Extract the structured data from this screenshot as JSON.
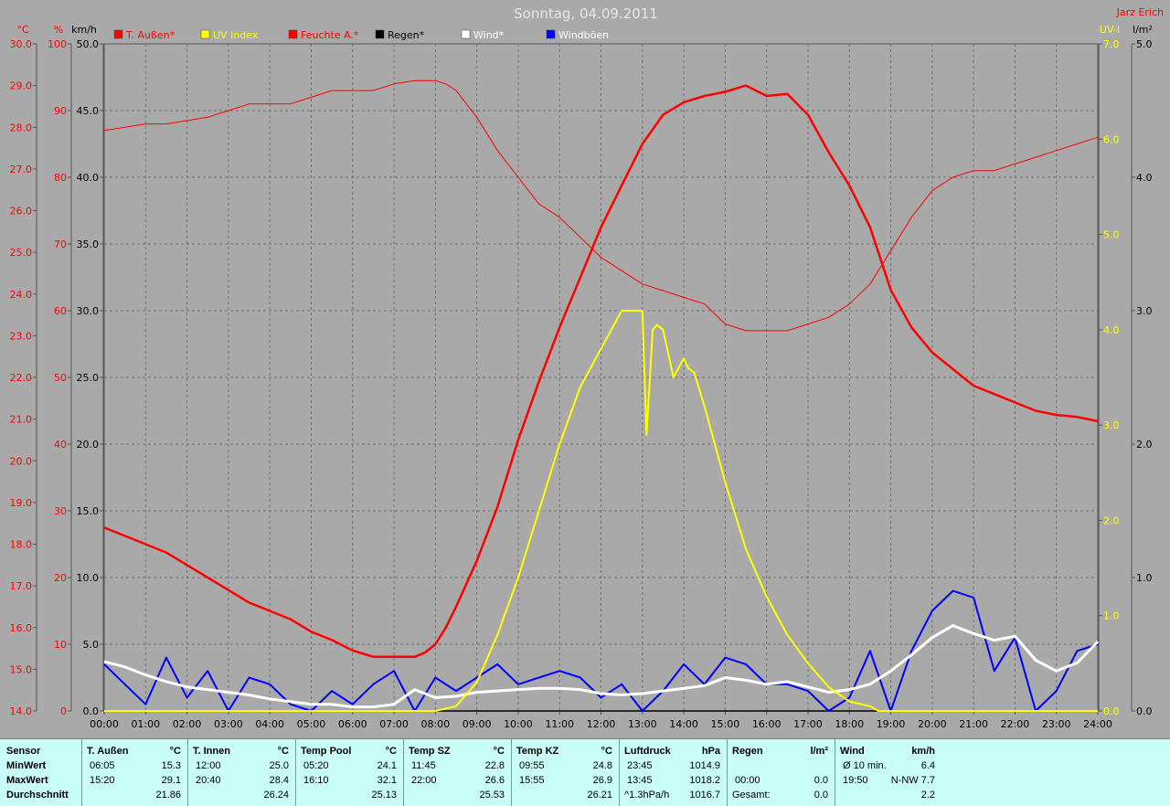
{
  "header": {
    "title": "Sonntag, 04.09.2011",
    "author": "Jarz Erich"
  },
  "axes": {
    "left_units": [
      "°C",
      "%",
      "km/h"
    ],
    "right_units": [
      "UV-I",
      "l/m²"
    ],
    "temp_ticks": [
      "30.0",
      "29.0",
      "28.0",
      "27.0",
      "26.0",
      "25.0",
      "24.0",
      "23.0",
      "22.0",
      "21.0",
      "20.0",
      "19.0",
      "18.0",
      "17.0",
      "16.0",
      "15.0",
      "14.0"
    ],
    "humidity_ticks": [
      "100",
      "90",
      "80",
      "70",
      "60",
      "50",
      "40",
      "30",
      "20",
      "10",
      "0"
    ],
    "wind_ticks": [
      "50.0",
      "45.0",
      "40.0",
      "35.0",
      "30.0",
      "25.0",
      "20.0",
      "15.0",
      "10.0",
      "5.0",
      "0.0"
    ],
    "uv_ticks": [
      "7.0",
      "6.0",
      "5.0",
      "4.0",
      "3.0",
      "2.0",
      "1.0",
      "0.0"
    ],
    "rain_ticks": [
      "5.0",
      "4.0",
      "3.0",
      "2.0",
      "1.0",
      "0.0"
    ],
    "time_ticks": [
      "00:00",
      "01:00",
      "02:00",
      "03:00",
      "04:00",
      "05:00",
      "06:00",
      "07:00",
      "08:00",
      "09:00",
      "10:00",
      "11:00",
      "12:00",
      "13:00",
      "14:00",
      "15:00",
      "16:00",
      "17:00",
      "18:00",
      "19:00",
      "20:00",
      "21:00",
      "22:00",
      "23:00",
      "24:00"
    ]
  },
  "legend": [
    {
      "label": "T. Außen*",
      "color": "#ff0000",
      "text_color": "#ff0000"
    },
    {
      "label": "UV Index",
      "color": "#ffff00",
      "text_color": "#ffff00"
    },
    {
      "label": "Feuchte A.*",
      "color": "#ff0000",
      "text_color": "#ff0000"
    },
    {
      "label": "Regen*",
      "color": "#000000",
      "text_color": "#000000"
    },
    {
      "label": "Wind*",
      "color": "#ffffff",
      "text_color": "#ffffff"
    },
    {
      "label": "Windböen",
      "color": "#0000ff",
      "text_color": "#ffffff"
    }
  ],
  "colors": {
    "background": "#a9a9a9",
    "grid": "#808080",
    "temp": "#ff0000",
    "uv": "#ffff00",
    "wind": "#ffffff",
    "gust": "#0000ff",
    "stats_bg": "#c8fdf8"
  },
  "chart_data": {
    "type": "line",
    "x_unit": "hours",
    "xlim": [
      0,
      24
    ],
    "grid": true,
    "series": [
      {
        "name": "T. Außen*",
        "unit": "°C",
        "ylim": [
          14,
          30
        ],
        "x": [
          0,
          0.5,
          1,
          1.5,
          2,
          2.5,
          3,
          3.5,
          4,
          4.5,
          5,
          5.5,
          6,
          6.5,
          7,
          7.5,
          7.75,
          8,
          8.25,
          8.5,
          9,
          9.5,
          10,
          10.5,
          11,
          11.5,
          12,
          12.5,
          13,
          13.5,
          14,
          14.5,
          15,
          15.5,
          16,
          16.5,
          17,
          17.5,
          18,
          18.5,
          19,
          19.5,
          20,
          20.5,
          21,
          21.5,
          22,
          22.5,
          23,
          23.5,
          24
        ],
        "values": [
          18.4,
          18.2,
          18.0,
          17.8,
          17.5,
          17.2,
          16.9,
          16.6,
          16.4,
          16.2,
          15.9,
          15.7,
          15.45,
          15.3,
          15.3,
          15.3,
          15.4,
          15.6,
          16.0,
          16.5,
          17.6,
          18.9,
          20.5,
          21.9,
          23.2,
          24.4,
          25.6,
          26.6,
          27.6,
          28.3,
          28.6,
          28.75,
          28.85,
          29.0,
          28.75,
          28.8,
          28.3,
          27.4,
          26.6,
          25.6,
          24.1,
          23.2,
          22.6,
          22.2,
          21.8,
          21.6,
          21.4,
          21.2,
          21.1,
          21.05,
          20.95
        ]
      },
      {
        "name": "Feuchte A.*",
        "unit": "%",
        "ylim": [
          0,
          100
        ],
        "x": [
          0,
          0.5,
          1,
          1.5,
          2,
          2.5,
          3,
          3.5,
          4,
          4.5,
          5,
          5.5,
          6,
          6.5,
          7,
          7.5,
          8,
          8.25,
          8.5,
          9,
          9.5,
          10,
          10.5,
          11,
          11.5,
          12,
          12.5,
          13,
          13.5,
          14,
          14.5,
          15,
          15.5,
          16,
          16.5,
          17,
          17.5,
          18,
          18.5,
          19,
          19.5,
          20,
          20.5,
          21,
          21.5,
          22,
          22.5,
          23,
          23.5,
          24
        ],
        "values": [
          87,
          87.5,
          88,
          88,
          88.5,
          89,
          90,
          91,
          91,
          91,
          92,
          93,
          93,
          93,
          94,
          94.5,
          94.5,
          94,
          93,
          89,
          84,
          80,
          76,
          74,
          71,
          68,
          66,
          64,
          63,
          62,
          61,
          58,
          57,
          57,
          57,
          58,
          59,
          61,
          64,
          69,
          74,
          78,
          80,
          81,
          81,
          82,
          83,
          84,
          85,
          86
        ]
      },
      {
        "name": "UV Index",
        "unit": "UV-I",
        "ylim": [
          0,
          7
        ],
        "x": [
          0,
          8,
          8.5,
          9,
          9.5,
          10,
          10.5,
          11,
          11.5,
          12,
          12.5,
          12.75,
          13,
          13.1,
          13.25,
          13.35,
          13.5,
          13.75,
          14,
          14.1,
          14.25,
          14.5,
          15,
          15.5,
          16,
          16.5,
          17,
          17.5,
          18,
          18.5,
          18.7,
          19,
          24
        ],
        "values": [
          0,
          0,
          0.05,
          0.3,
          0.8,
          1.4,
          2.1,
          2.8,
          3.4,
          3.8,
          4.2,
          4.2,
          4.2,
          2.9,
          4.0,
          4.05,
          4.0,
          3.5,
          3.7,
          3.6,
          3.55,
          3.2,
          2.4,
          1.7,
          1.2,
          0.8,
          0.5,
          0.25,
          0.1,
          0.05,
          0,
          0,
          0
        ]
      },
      {
        "name": "Wind*",
        "unit": "km/h",
        "ylim": [
          0,
          50
        ],
        "x": [
          0,
          0.5,
          1,
          1.5,
          2,
          2.5,
          3,
          3.5,
          4,
          4.5,
          5,
          5.5,
          6,
          6.5,
          7,
          7.5,
          8,
          8.5,
          9,
          9.5,
          10,
          10.5,
          11,
          11.5,
          12,
          12.5,
          13,
          13.5,
          14,
          14.5,
          15,
          15.5,
          16,
          16.5,
          17,
          17.5,
          18,
          18.5,
          19,
          19.5,
          20,
          20.5,
          21,
          21.5,
          22,
          22.5,
          23,
          23.5,
          24
        ],
        "values": [
          3.7,
          3.3,
          2.7,
          2.2,
          1.8,
          1.6,
          1.4,
          1.2,
          0.9,
          0.7,
          0.5,
          0.5,
          0.3,
          0.3,
          0.5,
          1.6,
          1.0,
          1.1,
          1.4,
          1.5,
          1.6,
          1.7,
          1.7,
          1.6,
          1.3,
          1.2,
          1.3,
          1.5,
          1.7,
          1.9,
          2.5,
          2.3,
          2.0,
          2.2,
          1.8,
          1.4,
          1.6,
          2.0,
          3.0,
          4.2,
          5.5,
          6.4,
          5.8,
          5.3,
          5.6,
          3.8,
          3.0,
          3.6,
          5.2
        ]
      },
      {
        "name": "Windböen",
        "unit": "km/h",
        "ylim": [
          0,
          50
        ],
        "x": [
          0,
          0.5,
          1,
          1.5,
          2,
          2.5,
          3,
          3.5,
          4,
          4.5,
          5,
          5.5,
          6,
          6.5,
          7,
          7.5,
          8,
          8.5,
          9,
          9.5,
          10,
          10.5,
          11,
          11.5,
          12,
          12.5,
          13,
          13.5,
          14,
          14.5,
          15,
          15.5,
          16,
          16.5,
          17,
          17.5,
          18,
          18.5,
          19,
          19.5,
          20,
          20.5,
          21,
          21.5,
          22,
          22.5,
          23,
          23.5,
          24
        ],
        "values": [
          3.5,
          2.0,
          0.5,
          4.0,
          1.0,
          3.0,
          0.0,
          2.5,
          2.0,
          0.5,
          0.0,
          1.5,
          0.5,
          2.0,
          3.0,
          0.0,
          2.5,
          1.5,
          2.5,
          3.5,
          2.0,
          2.5,
          3.0,
          2.5,
          1.0,
          2.0,
          0.0,
          1.5,
          3.5,
          2.0,
          4.0,
          3.5,
          2.0,
          2.0,
          1.5,
          0.0,
          1.0,
          4.5,
          0.0,
          4.5,
          7.5,
          9.0,
          8.5,
          3.0,
          5.5,
          0.0,
          1.5,
          4.5,
          5.0
        ]
      },
      {
        "name": "Regen*",
        "unit": "l/m²",
        "ylim": [
          0,
          5
        ],
        "x": [
          0,
          24
        ],
        "values": [
          0,
          0
        ]
      }
    ]
  },
  "stats": {
    "row_labels": [
      "Sensor",
      "MinWert",
      "MaxWert",
      "Durchschnitt"
    ],
    "columns": [
      {
        "name": "T. Außen",
        "unit": "°C",
        "min_time": "06:05",
        "min": "15.3",
        "max_time": "15:20",
        "max": "29.1",
        "avg_time": "",
        "avg": "21.86"
      },
      {
        "name": "T. Innen",
        "unit": "°C",
        "min_time": "12:00",
        "min": "25.0",
        "max_time": "20:40",
        "max": "28.4",
        "avg_time": "",
        "avg": "26.24"
      },
      {
        "name": "Temp Pool",
        "unit": "°C",
        "min_time": "05:20",
        "min": "24.1",
        "max_time": "16:10",
        "max": "32.1",
        "avg_time": "",
        "avg": "25.13"
      },
      {
        "name": "Temp SZ",
        "unit": "°C",
        "min_time": "11:45",
        "min": "22.8",
        "max_time": "22:00",
        "max": "26.6",
        "avg_time": "",
        "avg": "25.53"
      },
      {
        "name": "Temp KZ",
        "unit": "°C",
        "min_time": "09:55",
        "min": "24.8",
        "max_time": "15:55",
        "max": "26.9",
        "avg_time": "",
        "avg": "26.21"
      },
      {
        "name": "Luftdruck",
        "unit": "hPa",
        "min_time": "23:45",
        "min": "1014.9",
        "max_time": "13:45",
        "max": "1018.2",
        "avg_time": "^1.3hPa/h",
        "avg": "1016.7"
      },
      {
        "name": "Regen",
        "unit": "l/m²",
        "min_time": "",
        "min": "",
        "max_time": "00:00",
        "max": "0.0",
        "avg_time": "Gesamt:",
        "avg": "0.0"
      },
      {
        "name": "Wind",
        "unit": "km/h",
        "min_time": "Ø 10 min.",
        "min": "6.4",
        "max_time": "19:50",
        "max": "N-NW 7.7",
        "avg_time": "",
        "avg": "2.2"
      }
    ]
  }
}
